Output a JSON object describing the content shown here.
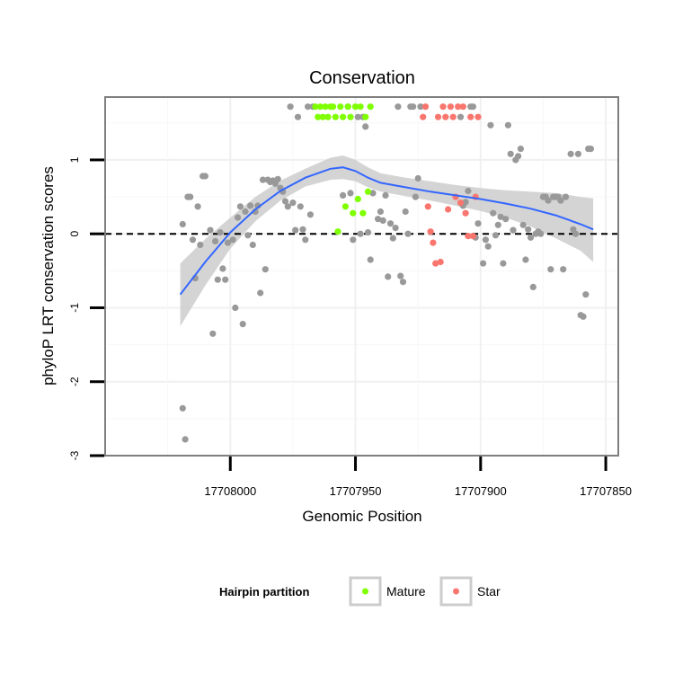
{
  "chart_data": {
    "type": "scatter",
    "title": "Conservation",
    "xlabel": "Genomic Position",
    "ylabel": "phyloP LRT conservation scores",
    "x_reversed": true,
    "xlim": [
      17708050,
      17707845
    ],
    "ylim": [
      -3,
      1.85
    ],
    "x_ticks": [
      17708000,
      17707950,
      17707900,
      17707850
    ],
    "x_tick_labels": [
      "17708000",
      "17707950",
      "17707900",
      "17707850"
    ],
    "y_ticks": [
      -3,
      -2,
      -1,
      0,
      1
    ],
    "y_tick_labels": [
      "-3",
      "-2",
      "-1",
      "0",
      "1"
    ],
    "grid": true,
    "reference_line": {
      "y": 0,
      "style": "dashed"
    },
    "legend": {
      "title": "Hairpin partition",
      "placement": "bottom",
      "entries": [
        {
          "label": "Mature",
          "color": "#7fff00"
        },
        {
          "label": "Star",
          "color": "#f8766d"
        }
      ]
    },
    "colors": {
      "other": "#999999",
      "mature": "#7fff00",
      "star": "#f8766d",
      "smooth": "#3366ff",
      "band": "#cccccc"
    },
    "series": [
      {
        "group": "other",
        "points": [
          [
            17708019,
            0.13
          ],
          [
            17708019,
            -2.36
          ],
          [
            17708018,
            -2.78
          ],
          [
            17708017,
            0.5
          ],
          [
            17708016,
            0.5
          ],
          [
            17708015,
            -0.08
          ],
          [
            17708014,
            -0.6
          ],
          [
            17708013,
            0.37
          ],
          [
            17708012,
            -0.15
          ],
          [
            17708011,
            0.78
          ],
          [
            17708010,
            0.78
          ],
          [
            17708008,
            0.05
          ],
          [
            17708007,
            -1.35
          ],
          [
            17708006,
            -0.1
          ],
          [
            17708005,
            -0.62
          ],
          [
            17708004,
            0.02
          ],
          [
            17708003,
            -0.47
          ],
          [
            17708002,
            -0.62
          ],
          [
            17708001,
            -0.12
          ],
          [
            17707999,
            -0.08
          ],
          [
            17707998,
            -1.0
          ],
          [
            17707997,
            0.22
          ],
          [
            17707996,
            0.37
          ],
          [
            17707995,
            -1.22
          ],
          [
            17707994,
            0.3
          ],
          [
            17707993,
            -0.02
          ],
          [
            17707992,
            0.38
          ],
          [
            17707991,
            -0.15
          ],
          [
            17707990,
            0.3
          ],
          [
            17707989,
            0.38
          ],
          [
            17707988,
            -0.8
          ],
          [
            17707987,
            0.73
          ],
          [
            17707986,
            -0.48
          ],
          [
            17707985,
            0.73
          ],
          [
            17707984,
            0.7
          ],
          [
            17707983,
            0.72
          ],
          [
            17707982,
            0.68
          ],
          [
            17707981,
            0.74
          ],
          [
            17707980,
            0.62
          ],
          [
            17707979,
            0.57
          ],
          [
            17707978,
            0.44
          ],
          [
            17707977,
            0.37
          ],
          [
            17707976,
            1.72
          ],
          [
            17707975,
            0.42
          ],
          [
            17707974,
            0.05
          ],
          [
            17707973,
            1.58
          ],
          [
            17707972,
            0.37
          ],
          [
            17707971,
            0.06
          ],
          [
            17707970,
            -0.08
          ],
          [
            17707969,
            1.72
          ],
          [
            17707968,
            0.26
          ],
          [
            17707967,
            1.72
          ],
          [
            17707955,
            0.52
          ],
          [
            17707953,
            1.72
          ],
          [
            17707952,
            0.55
          ],
          [
            17707951,
            -0.08
          ],
          [
            17707949,
            1.58
          ],
          [
            17707948,
            0.0
          ],
          [
            17707947,
            1.58
          ],
          [
            17707946,
            1.45
          ],
          [
            17707945,
            0.02
          ],
          [
            17707944,
            -0.35
          ],
          [
            17707943,
            0.55
          ],
          [
            17707941,
            0.2
          ],
          [
            17707940,
            0.3
          ],
          [
            17707939,
            0.18
          ],
          [
            17707938,
            0.52
          ],
          [
            17707937,
            -0.58
          ],
          [
            17707936,
            0.14
          ],
          [
            17707935,
            -0.06
          ],
          [
            17707934,
            0.08
          ],
          [
            17707933,
            1.72
          ],
          [
            17707932,
            -0.57
          ],
          [
            17707931,
            -0.65
          ],
          [
            17707930,
            0.3
          ],
          [
            17707929,
            0.0
          ],
          [
            17707928,
            1.72
          ],
          [
            17707927,
            1.72
          ],
          [
            17707926,
            0.5
          ],
          [
            17707925,
            0.75
          ],
          [
            17707924,
            1.72
          ],
          [
            17707908,
            1.58
          ],
          [
            17707907,
            0.38
          ],
          [
            17707906,
            0.43
          ],
          [
            17707905,
            0.58
          ],
          [
            17707904,
            1.72
          ],
          [
            17707903,
            1.72
          ],
          [
            17707902,
            -0.05
          ],
          [
            17707901,
            0.14
          ],
          [
            17707899,
            -0.4
          ],
          [
            17707898,
            -0.08
          ],
          [
            17707897,
            -0.17
          ],
          [
            17707896,
            1.47
          ],
          [
            17707895,
            0.28
          ],
          [
            17707894,
            -0.02
          ],
          [
            17707893,
            0.12
          ],
          [
            17707892,
            0.23
          ],
          [
            17707891,
            -0.4
          ],
          [
            17707890,
            0.2
          ],
          [
            17707889,
            1.47
          ],
          [
            17707888,
            1.08
          ],
          [
            17707887,
            0.05
          ],
          [
            17707886,
            1.0
          ],
          [
            17707885,
            1.05
          ],
          [
            17707884,
            1.15
          ],
          [
            17707883,
            0.12
          ],
          [
            17707882,
            -0.35
          ],
          [
            17707881,
            0.06
          ],
          [
            17707880,
            -0.05
          ],
          [
            17707879,
            -0.72
          ],
          [
            17707878,
            0.0
          ],
          [
            17707877,
            0.03
          ],
          [
            17707876,
            0.0
          ],
          [
            17707875,
            0.5
          ],
          [
            17707874,
            0.5
          ],
          [
            17707873,
            0.45
          ],
          [
            17707872,
            -0.48
          ],
          [
            17707871,
            0.5
          ],
          [
            17707870,
            0.5
          ],
          [
            17707869,
            0.5
          ],
          [
            17707868,
            0.45
          ],
          [
            17707867,
            -0.48
          ],
          [
            17707866,
            0.5
          ],
          [
            17707864,
            1.08
          ],
          [
            17707863,
            0.06
          ],
          [
            17707862,
            0.0
          ],
          [
            17707861,
            1.08
          ],
          [
            17707860,
            -1.1
          ],
          [
            17707859,
            -1.12
          ],
          [
            17707858,
            -0.82
          ],
          [
            17707857,
            1.15
          ],
          [
            17707856,
            1.15
          ]
        ]
      },
      {
        "group": "mature",
        "points": [
          [
            17707966,
            1.72
          ],
          [
            17707965,
            1.58
          ],
          [
            17707964,
            1.72
          ],
          [
            17707963,
            1.58
          ],
          [
            17707962,
            1.72
          ],
          [
            17707961,
            1.58
          ],
          [
            17707960,
            1.72
          ],
          [
            17707959,
            1.72
          ],
          [
            17707958,
            1.58
          ],
          [
            17707957,
            0.03
          ],
          [
            17707956,
            1.72
          ],
          [
            17707955,
            1.58
          ],
          [
            17707954,
            0.37
          ],
          [
            17707953,
            1.72
          ],
          [
            17707952,
            1.58
          ],
          [
            17707951,
            0.28
          ],
          [
            17707950,
            1.72
          ],
          [
            17707949,
            0.47
          ],
          [
            17707948,
            1.72
          ],
          [
            17707947,
            0.28
          ],
          [
            17707946,
            1.58
          ],
          [
            17707945,
            0.57
          ],
          [
            17707944,
            1.72
          ]
        ]
      },
      {
        "group": "star",
        "points": [
          [
            17707923,
            1.58
          ],
          [
            17707922,
            1.72
          ],
          [
            17707921,
            0.37
          ],
          [
            17707920,
            0.03
          ],
          [
            17707919,
            -0.12
          ],
          [
            17707918,
            -0.4
          ],
          [
            17707917,
            1.58
          ],
          [
            17707916,
            -0.38
          ],
          [
            17707915,
            1.72
          ],
          [
            17707914,
            1.58
          ],
          [
            17707913,
            0.33
          ],
          [
            17707912,
            1.72
          ],
          [
            17707911,
            1.58
          ],
          [
            17707910,
            0.5
          ],
          [
            17707909,
            1.72
          ],
          [
            17707908,
            0.42
          ],
          [
            17707907,
            1.72
          ],
          [
            17707906,
            0.28
          ],
          [
            17707905,
            -0.03
          ],
          [
            17707904,
            1.58
          ],
          [
            17707903,
            -0.03
          ],
          [
            17707902,
            0.5
          ],
          [
            17707901,
            1.58
          ]
        ]
      }
    ],
    "smooth": {
      "x": [
        17708020,
        17708010,
        17708000,
        17707990,
        17707980,
        17707970,
        17707960,
        17707955,
        17707950,
        17707945,
        17707940,
        17707930,
        17707920,
        17707910,
        17707900,
        17707890,
        17707880,
        17707870,
        17707860,
        17707855
      ],
      "y": [
        -0.82,
        -0.38,
        0.02,
        0.33,
        0.58,
        0.76,
        0.88,
        0.9,
        0.85,
        0.76,
        0.69,
        0.63,
        0.57,
        0.52,
        0.47,
        0.41,
        0.34,
        0.25,
        0.13,
        0.06
      ],
      "lower": [
        -1.25,
        -0.7,
        -0.2,
        0.17,
        0.45,
        0.64,
        0.73,
        0.74,
        0.71,
        0.63,
        0.57,
        0.51,
        0.45,
        0.38,
        0.31,
        0.22,
        0.1,
        -0.06,
        -0.23,
        -0.38
      ],
      "upper": [
        -0.4,
        -0.07,
        0.22,
        0.5,
        0.72,
        0.88,
        1.03,
        1.06,
        1.0,
        0.9,
        0.82,
        0.76,
        0.71,
        0.66,
        0.62,
        0.59,
        0.57,
        0.55,
        0.5,
        0.48
      ]
    }
  }
}
